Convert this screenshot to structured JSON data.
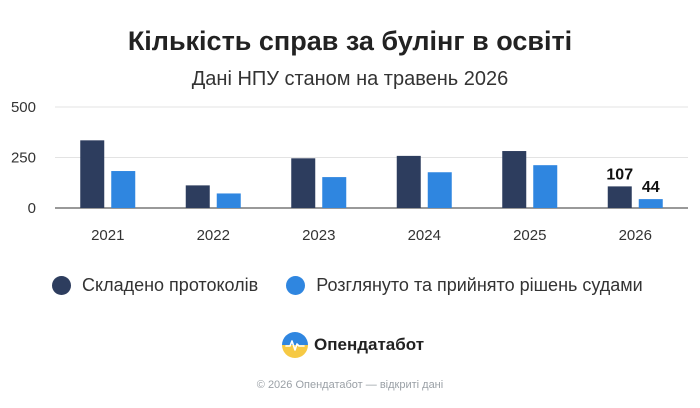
{
  "header": {
    "title": "Кількість справ за булінг в освіті",
    "subtitle": "Дані НПУ станом на травень 2026"
  },
  "chart_data": {
    "type": "bar",
    "title": "Кількість справ за булінг в освіті",
    "subtitle": "Дані НПУ станом на травень 2026",
    "categories": [
      "2021",
      "2022",
      "2023",
      "2024",
      "2025",
      "2026"
    ],
    "series": [
      {
        "name": "Складено протоколів",
        "values": [
          335,
          112,
          246,
          258,
          282,
          107
        ],
        "color": "#2d3d5e"
      },
      {
        "name": "Розглянуто та прийнято рішень судами",
        "values": [
          183,
          72,
          153,
          177,
          212,
          44
        ],
        "color": "#2f86e0"
      }
    ],
    "data_labels": [
      {
        "series": 0,
        "category": "2026",
        "text": "107"
      },
      {
        "series": 1,
        "category": "2026",
        "text": "44"
      }
    ],
    "yticks": [
      "0",
      "250",
      "500"
    ],
    "ylim": [
      0,
      500
    ],
    "grid": true,
    "legend_position": "bottom"
  },
  "brand": {
    "name": "Опендатабот",
    "logo_icon": "opendatabot-logo-icon"
  },
  "footer": {
    "text": "© 2026 Опендатабот — відкриті дані"
  }
}
